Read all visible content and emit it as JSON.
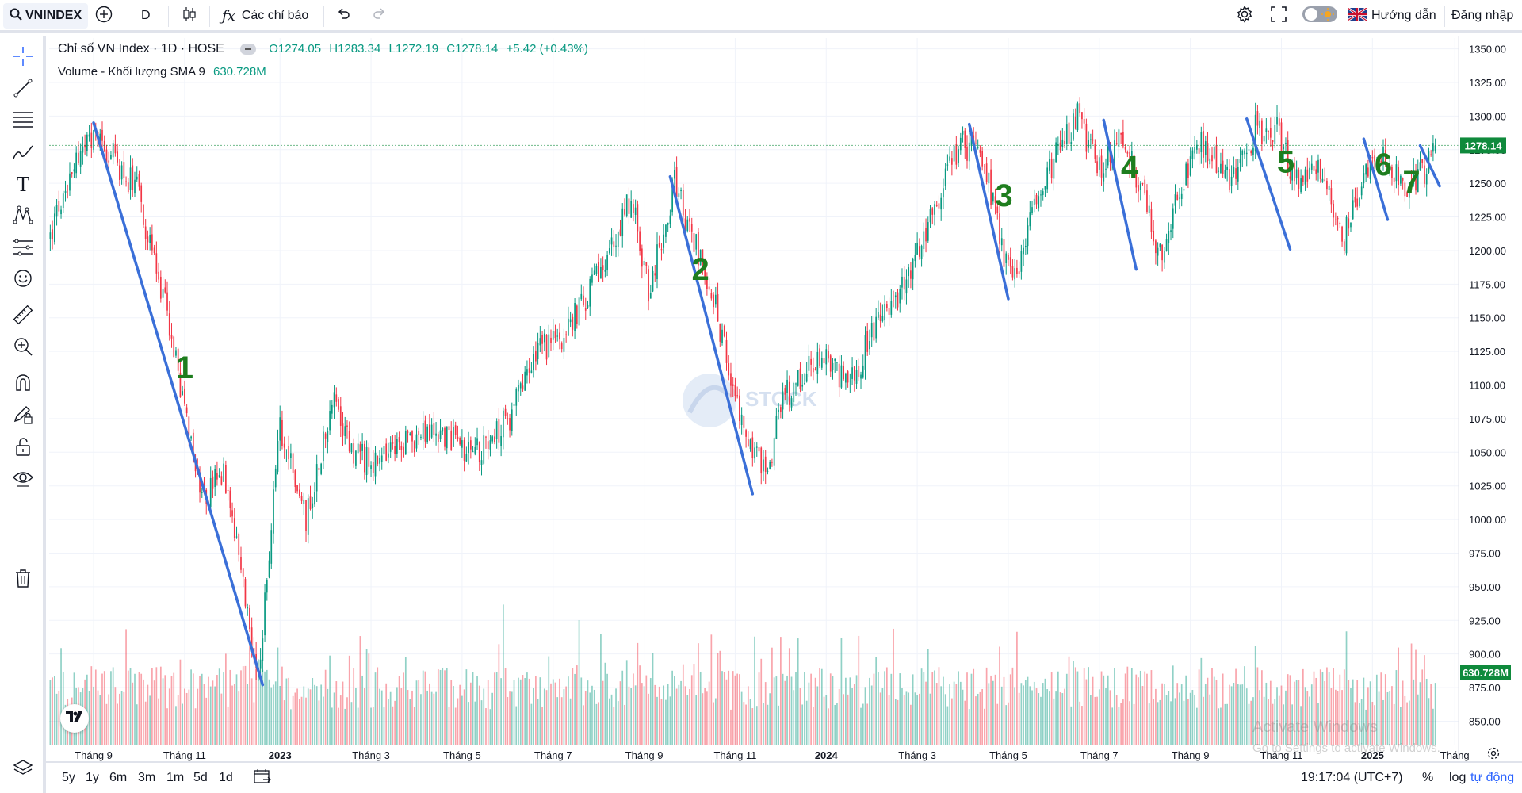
{
  "toolbar": {
    "symbol": "VNINDEX",
    "interval": "D",
    "indicators_label": "Các chỉ báo",
    "guide_label": "Hướng dẫn",
    "login_label": "Đăng nhập",
    "icons": [
      "search-icon",
      "add-icon",
      "candles-icon",
      "fx-icon",
      "undo-icon",
      "redo-icon",
      "gear-icon",
      "fullscreen-icon",
      "theme-toggle-icon",
      "uk-flag-icon"
    ]
  },
  "legend": {
    "title": "Chỉ số VN Index · 1D · HOSE",
    "open": "O1274.05",
    "high": "H1283.34",
    "low": "L1272.19",
    "close": "C1278.14",
    "change": "+5.42 (+0.43%)",
    "volume_label": "Volume - Khối lượng SMA 9",
    "volume_value": "630.728M"
  },
  "price_label": "1278.14",
  "volume_label_badge": "630.728M",
  "watermark_text": "STOCK",
  "activation": {
    "line1": "Activate Windows",
    "line2": "Go to Settings to activate Windows."
  },
  "bottom": {
    "ranges": [
      "5y",
      "1y",
      "6m",
      "3m",
      "1m",
      "5d",
      "1d"
    ],
    "clock": "19:17:04 (UTC+7)",
    "percent": "%",
    "log": "log",
    "auto": "tự động"
  },
  "colors": {
    "up": "#089981",
    "down": "#f23645",
    "trend": "#3a6fd8",
    "annotation": "#1e7d1e",
    "grid": "#f0f3fa"
  },
  "chart_data": {
    "type": "candlestick",
    "y_ticks": [
      1350,
      1325,
      1300,
      1275,
      1250,
      1225,
      1200,
      1175,
      1150,
      1125,
      1100,
      1075,
      1050,
      1025,
      1000,
      975,
      950,
      925,
      900,
      875,
      850
    ],
    "y_tick_labels": [
      "1350.00",
      "1325.00",
      "1300.00",
      "1275.00",
      "1250.00",
      "1225.00",
      "1200.00",
      "1175.00",
      "1150.00",
      "1125.00",
      "1100.00",
      "1075.00",
      "1050.00",
      "1025.00",
      "1000.00",
      "975.00",
      "950.00",
      "925.00",
      "900.00",
      "875.00",
      "850.00"
    ],
    "ylim": [
      832,
      1358
    ],
    "x_labels": [
      {
        "i": 20,
        "label": "Tháng 9"
      },
      {
        "i": 62,
        "label": "Tháng 11"
      },
      {
        "i": 106,
        "label": "2023"
      },
      {
        "i": 148,
        "label": "Tháng 3"
      },
      {
        "i": 190,
        "label": "Tháng 5"
      },
      {
        "i": 232,
        "label": "Tháng 7"
      },
      {
        "i": 274,
        "label": "Tháng 9"
      },
      {
        "i": 316,
        "label": "Tháng 11"
      },
      {
        "i": 358,
        "label": "2024"
      },
      {
        "i": 400,
        "label": "Tháng 3"
      },
      {
        "i": 442,
        "label": "Tháng 5"
      },
      {
        "i": 484,
        "label": "Tháng 7"
      },
      {
        "i": 526,
        "label": "Tháng 9"
      },
      {
        "i": 568,
        "label": "Tháng 11"
      },
      {
        "i": 610,
        "label": "2025"
      },
      {
        "i": 648,
        "label": "Tháng"
      }
    ],
    "n_bars": 640,
    "close_anchors": [
      [
        0,
        1210
      ],
      [
        10,
        1265
      ],
      [
        22,
        1285
      ],
      [
        40,
        1245
      ],
      [
        55,
        1145
      ],
      [
        70,
        1010
      ],
      [
        80,
        1040
      ],
      [
        96,
        880
      ],
      [
        106,
        1070
      ],
      [
        118,
        1000
      ],
      [
        130,
        1090
      ],
      [
        140,
        1050
      ],
      [
        150,
        1040
      ],
      [
        165,
        1060
      ],
      [
        180,
        1065
      ],
      [
        196,
        1050
      ],
      [
        212,
        1075
      ],
      [
        225,
        1125
      ],
      [
        238,
        1140
      ],
      [
        256,
        1190
      ],
      [
        268,
        1240
      ],
      [
        276,
        1170
      ],
      [
        288,
        1250
      ],
      [
        305,
        1170
      ],
      [
        318,
        1080
      ],
      [
        330,
        1030
      ],
      [
        338,
        1090
      ],
      [
        348,
        1110
      ],
      [
        360,
        1120
      ],
      [
        368,
        1095
      ],
      [
        382,
        1150
      ],
      [
        394,
        1175
      ],
      [
        410,
        1240
      ],
      [
        420,
        1280
      ],
      [
        430,
        1270
      ],
      [
        444,
        1170
      ],
      [
        456,
        1250
      ],
      [
        468,
        1280
      ],
      [
        474,
        1300
      ],
      [
        484,
        1260
      ],
      [
        494,
        1290
      ],
      [
        504,
        1240
      ],
      [
        512,
        1195
      ],
      [
        522,
        1250
      ],
      [
        532,
        1280
      ],
      [
        544,
        1250
      ],
      [
        556,
        1290
      ],
      [
        566,
        1290
      ],
      [
        576,
        1245
      ],
      [
        586,
        1260
      ],
      [
        596,
        1205
      ],
      [
        606,
        1255
      ],
      [
        616,
        1270
      ],
      [
        626,
        1245
      ],
      [
        634,
        1260
      ],
      [
        640,
        1278
      ]
    ],
    "last": {
      "open": 1274.05,
      "high": 1283.34,
      "low": 1272.19,
      "close": 1278.14
    },
    "current_price": 1278.14,
    "volume": {
      "last": 630.728,
      "unit": "M",
      "sma_period": 9
    },
    "trend_lines": [
      {
        "label": "1",
        "from": [
          20,
          1295
        ],
        "to": [
          98,
          877
        ],
        "label_at": [
          62,
          1105
        ]
      },
      {
        "label": "2",
        "from": [
          286,
          1255
        ],
        "to": [
          324,
          1019
        ],
        "label_at": [
          300,
          1178
        ]
      },
      {
        "label": "3",
        "from": [
          424,
          1294
        ],
        "to": [
          442,
          1164
        ],
        "label_at": [
          440,
          1233
        ]
      },
      {
        "label": "4",
        "from": [
          486,
          1297
        ],
        "to": [
          501,
          1186
        ],
        "label_at": [
          498,
          1254
        ]
      },
      {
        "label": "5",
        "from": [
          552,
          1298
        ],
        "to": [
          572,
          1201
        ],
        "label_at": [
          570,
          1258
        ]
      },
      {
        "label": "6",
        "from": [
          606,
          1283
        ],
        "to": [
          617,
          1223
        ],
        "label_at": [
          615,
          1256
        ]
      },
      {
        "label": "7",
        "from": [
          632,
          1278
        ],
        "to": [
          641,
          1248
        ],
        "label_at": [
          628,
          1243
        ]
      }
    ]
  }
}
